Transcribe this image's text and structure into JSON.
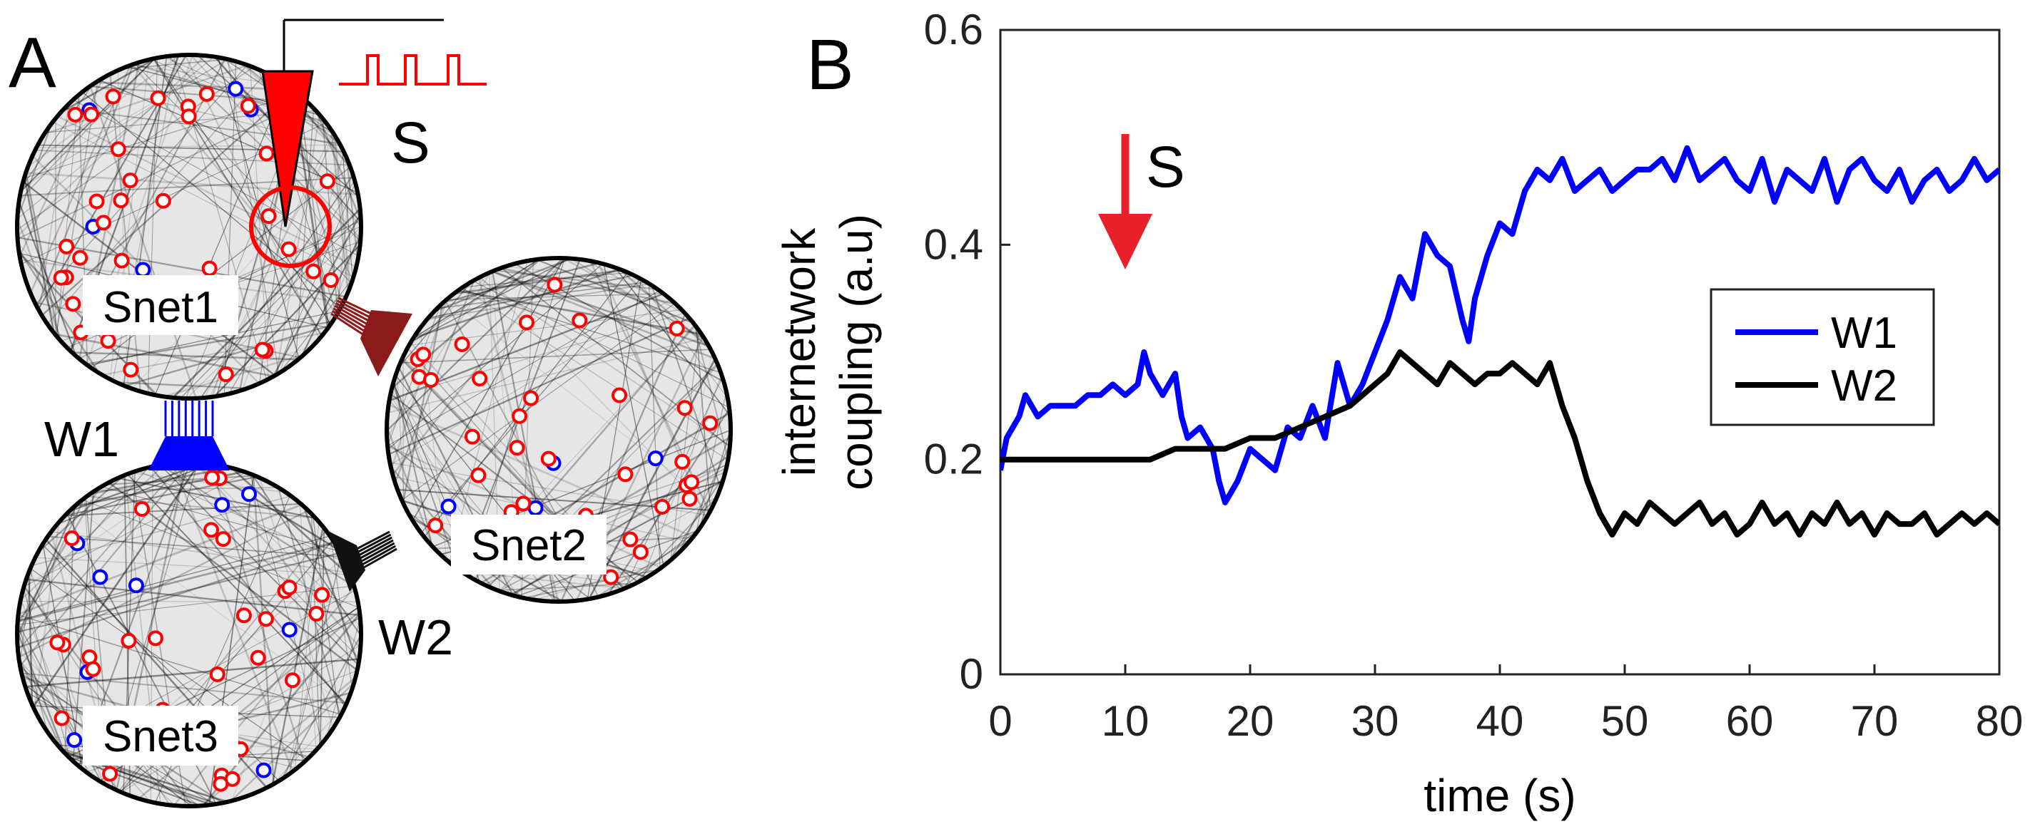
{
  "panel_a": {
    "letter": "A",
    "subnetworks": [
      {
        "label": "Snet1"
      },
      {
        "label": "Snet2"
      },
      {
        "label": "Snet3"
      }
    ],
    "stimulus_label": "S",
    "coupling_labels": {
      "w1": "W1",
      "w2": "W2"
    },
    "colors": {
      "excitatory": "#ff0000",
      "inhibitory": "#0000ff",
      "stimulus": "#ff0000",
      "w1": "#0000ff",
      "w2": "#111111",
      "w12": "#8b1a1a"
    }
  },
  "panel_b": {
    "letter": "B",
    "stimulus_label": "S",
    "stimulus_time": 10
  },
  "chart_data": {
    "type": "line",
    "title": "",
    "xlabel": "time (s)",
    "ylabel_lines": [
      "internetwork",
      "coupling (a.u)"
    ],
    "xlim": [
      0,
      80
    ],
    "ylim": [
      0,
      0.6
    ],
    "xticks": [
      0,
      10,
      20,
      30,
      40,
      50,
      60,
      70,
      80
    ],
    "xtick_labels": [
      "0",
      "10",
      "20",
      "30",
      "40",
      "50",
      "60",
      "70",
      "80"
    ],
    "yticks": [
      0,
      0.2,
      0.4,
      0.6
    ],
    "ytick_labels": [
      "0",
      "0.2",
      "0.4",
      "0.6"
    ],
    "legend_position": "right",
    "series": [
      {
        "name": "W1",
        "color": "#0000ff",
        "x": [
          0,
          0.5,
          1,
          1.5,
          2,
          3,
          4,
          5,
          6,
          7,
          8,
          9,
          10,
          11,
          11.5,
          12,
          13,
          14,
          14.5,
          15,
          16,
          17,
          17.5,
          18,
          18.5,
          19,
          20,
          21,
          22,
          23,
          24,
          25,
          26,
          27,
          28,
          29,
          30,
          31,
          32,
          33,
          34,
          35,
          36,
          37,
          37.5,
          38,
          39,
          40,
          41,
          42,
          43,
          44,
          45,
          46,
          47,
          48,
          49,
          50,
          51,
          52,
          53,
          54,
          55,
          56,
          57,
          58,
          59,
          60,
          61,
          62,
          63,
          64,
          65,
          66,
          67,
          68,
          69,
          70,
          71,
          72,
          73,
          74,
          75,
          76,
          77,
          78,
          79,
          80
        ],
        "values": [
          0.19,
          0.22,
          0.23,
          0.24,
          0.26,
          0.24,
          0.25,
          0.25,
          0.25,
          0.26,
          0.26,
          0.27,
          0.26,
          0.27,
          0.3,
          0.28,
          0.26,
          0.28,
          0.24,
          0.22,
          0.23,
          0.21,
          0.18,
          0.16,
          0.17,
          0.18,
          0.21,
          0.2,
          0.19,
          0.23,
          0.22,
          0.25,
          0.22,
          0.29,
          0.25,
          0.27,
          0.3,
          0.33,
          0.37,
          0.35,
          0.41,
          0.39,
          0.38,
          0.33,
          0.31,
          0.35,
          0.39,
          0.42,
          0.41,
          0.45,
          0.47,
          0.46,
          0.48,
          0.45,
          0.46,
          0.47,
          0.45,
          0.46,
          0.47,
          0.47,
          0.48,
          0.46,
          0.49,
          0.46,
          0.47,
          0.48,
          0.46,
          0.45,
          0.48,
          0.44,
          0.47,
          0.46,
          0.45,
          0.48,
          0.44,
          0.47,
          0.48,
          0.46,
          0.45,
          0.47,
          0.44,
          0.46,
          0.47,
          0.45,
          0.46,
          0.48,
          0.46,
          0.47
        ]
      },
      {
        "name": "W2",
        "color": "#000000",
        "x": [
          0,
          2,
          4,
          6,
          8,
          10,
          12,
          14,
          16,
          18,
          20,
          22,
          24,
          26,
          28,
          30,
          31,
          32,
          33,
          34,
          35,
          36,
          37,
          38,
          39,
          40,
          41,
          42,
          43,
          44,
          44.5,
          45,
          46,
          47,
          48,
          49,
          50,
          51,
          52,
          53,
          54,
          55,
          56,
          57,
          58,
          59,
          60,
          61,
          62,
          63,
          64,
          65,
          66,
          67,
          68,
          69,
          70,
          71,
          72,
          73,
          74,
          75,
          76,
          77,
          78,
          79,
          80
        ],
        "values": [
          0.2,
          0.2,
          0.2,
          0.2,
          0.2,
          0.2,
          0.2,
          0.21,
          0.21,
          0.21,
          0.22,
          0.22,
          0.23,
          0.24,
          0.25,
          0.27,
          0.28,
          0.3,
          0.29,
          0.28,
          0.27,
          0.29,
          0.28,
          0.27,
          0.28,
          0.28,
          0.29,
          0.28,
          0.27,
          0.29,
          0.27,
          0.25,
          0.22,
          0.18,
          0.15,
          0.13,
          0.15,
          0.14,
          0.16,
          0.15,
          0.14,
          0.15,
          0.16,
          0.14,
          0.15,
          0.13,
          0.14,
          0.16,
          0.14,
          0.15,
          0.13,
          0.15,
          0.14,
          0.16,
          0.14,
          0.15,
          0.13,
          0.15,
          0.14,
          0.14,
          0.15,
          0.13,
          0.14,
          0.15,
          0.14,
          0.15,
          0.14
        ]
      }
    ]
  }
}
